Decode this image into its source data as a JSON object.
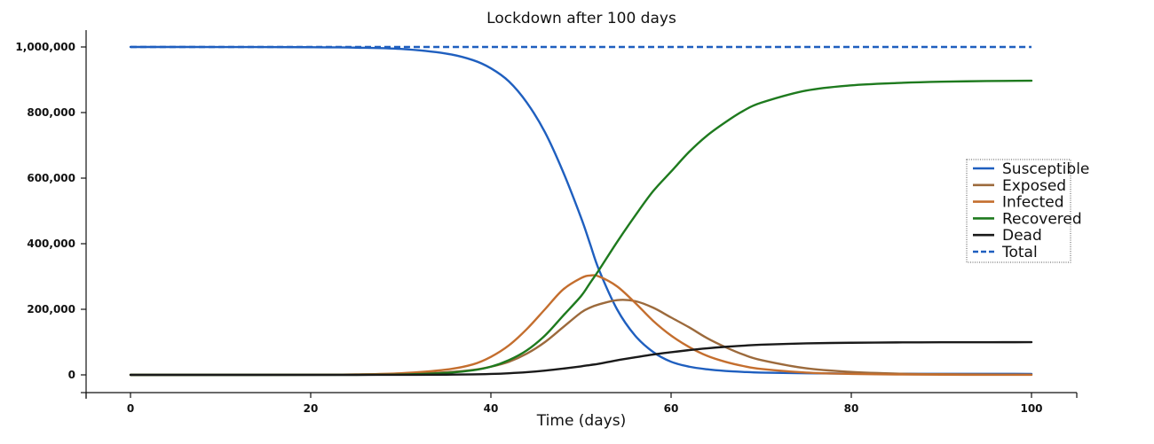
{
  "chart_data": {
    "type": "line",
    "title": "Lockdown after 100 days",
    "xlabel": "Time (days)",
    "ylabel": "",
    "xlim": [
      0,
      100
    ],
    "ylim": [
      0,
      1000000
    ],
    "x_ticks": [
      0,
      20,
      40,
      60,
      80,
      100
    ],
    "y_ticks": [
      0,
      200000,
      400000,
      600000,
      800000,
      1000000
    ],
    "x_tick_labels": [
      "0",
      "20",
      "40",
      "60",
      "80",
      "100"
    ],
    "y_tick_labels": [
      "0",
      "200,000",
      "400,000",
      "600,000",
      "800,000",
      "1,000,000"
    ],
    "grid": false,
    "legend_position": "right",
    "x": [
      0,
      10,
      20,
      25,
      30,
      35,
      38,
      40,
      42,
      44,
      46,
      48,
      50,
      51,
      52,
      54,
      56,
      58,
      60,
      62,
      64,
      66,
      68,
      70,
      75,
      80,
      85,
      90,
      95,
      100
    ],
    "series": [
      {
        "name": "Susceptible",
        "color": "#1f5fbf",
        "dash": "solid",
        "values": [
          1000000,
          999900,
          999300,
          998000,
          994000,
          980000,
          960000,
          935000,
          895000,
          830000,
          740000,
          620000,
          480000,
          400000,
          320000,
          200000,
          120000,
          70000,
          40000,
          25000,
          17000,
          12000,
          9000,
          7000,
          5000,
          4000,
          3500,
          3200,
          3100,
          3000
        ]
      },
      {
        "name": "Exposed",
        "color": "#9c6a3c",
        "dash": "solid",
        "values": [
          0,
          50,
          300,
          800,
          2500,
          8000,
          15000,
          25000,
          40000,
          65000,
          100000,
          145000,
          190000,
          205000,
          215000,
          228000,
          225000,
          205000,
          175000,
          145000,
          112000,
          85000,
          62000,
          45000,
          20000,
          9000,
          4000,
          2000,
          1000,
          500
        ]
      },
      {
        "name": "Infected",
        "color": "#c46e2e",
        "dash": "solid",
        "values": [
          0,
          100,
          500,
          1500,
          5000,
          16000,
          32000,
          55000,
          90000,
          140000,
          200000,
          260000,
          295000,
          303000,
          300000,
          270000,
          220000,
          165000,
          120000,
          85000,
          58000,
          40000,
          27000,
          18000,
          7000,
          3000,
          1200,
          500,
          200,
          100
        ]
      },
      {
        "name": "Recovered",
        "color": "#1e7a1e",
        "dash": "solid",
        "values": [
          0,
          0,
          100,
          300,
          1200,
          6000,
          14000,
          25000,
          45000,
          75000,
          120000,
          180000,
          240000,
          280000,
          320000,
          405000,
          485000,
          560000,
          620000,
          680000,
          730000,
          770000,
          805000,
          830000,
          867000,
          883000,
          890000,
          894000,
          896000,
          897000
        ]
      },
      {
        "name": "Dead",
        "color": "#1a1a1a",
        "dash": "solid",
        "values": [
          0,
          0,
          10,
          30,
          150,
          700,
          1600,
          2800,
          5000,
          8300,
          13000,
          19000,
          26000,
          30000,
          34000,
          44500,
          53500,
          62000,
          69000,
          75500,
          81000,
          85500,
          89000,
          92000,
          96000,
          98000,
          99000,
          99400,
          99600,
          99700
        ]
      },
      {
        "name": "Total",
        "color": "#1f5fbf",
        "dash": "dashed",
        "values": [
          1000000,
          1000000,
          1000000,
          1000000,
          1000000,
          1000000,
          1000000,
          1000000,
          1000000,
          1000000,
          1000000,
          1000000,
          1000000,
          1000000,
          1000000,
          1000000,
          1000000,
          1000000,
          1000000,
          1000000,
          1000000,
          1000000,
          1000000,
          1000000,
          1000000,
          1000000,
          1000000,
          1000000,
          1000000,
          1000000
        ]
      }
    ]
  }
}
